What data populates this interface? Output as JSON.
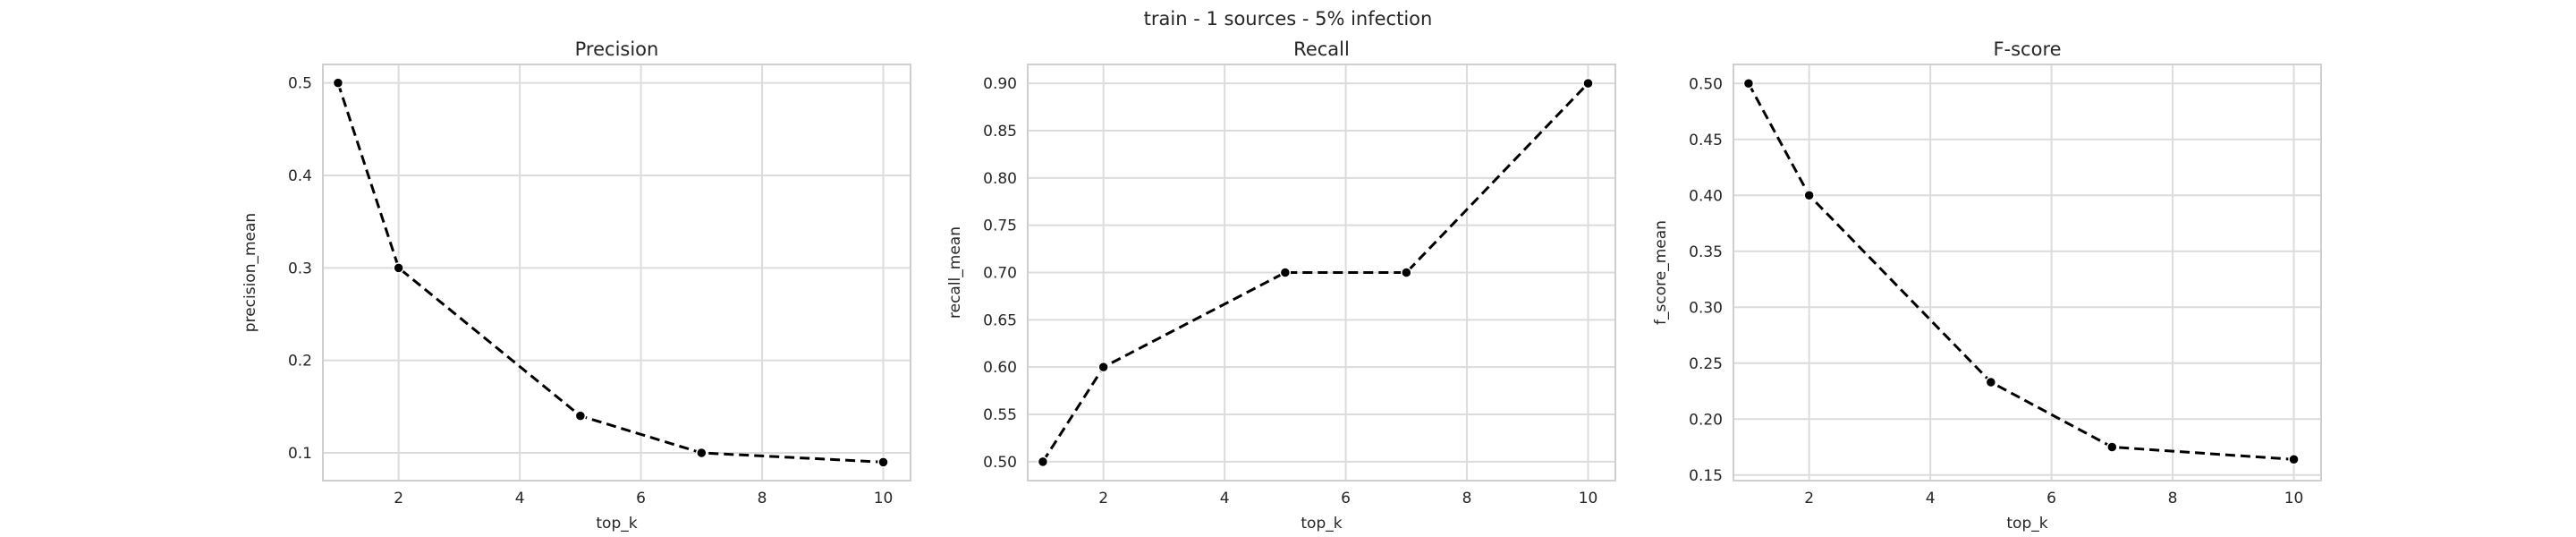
{
  "suptitle": "train - 1 sources - 5% infection",
  "colors": {
    "line": "#000000",
    "grid": "#dcdcdc",
    "frame": "#cfcfcf",
    "text": "#262626",
    "background": "#ffffff"
  },
  "chart_data": [
    {
      "type": "line",
      "title": "Precision",
      "xlabel": "top_k",
      "ylabel": "precision_mean",
      "x": [
        1,
        2,
        5,
        7,
        10
      ],
      "y": [
        0.5,
        0.3,
        0.14,
        0.1,
        0.09
      ],
      "xlim": [
        0.75,
        10.45
      ],
      "ylim": [
        0.07,
        0.52
      ],
      "xticks": [
        2,
        4,
        6,
        8,
        10
      ],
      "xtick_labels": [
        "2",
        "4",
        "6",
        "8",
        "10"
      ],
      "yticks": [
        0.1,
        0.2,
        0.3,
        0.4,
        0.5
      ],
      "ytick_labels": [
        "0.1",
        "0.2",
        "0.3",
        "0.4",
        "0.5"
      ],
      "grid": true,
      "line_style": "dashed",
      "marker": "circle"
    },
    {
      "type": "line",
      "title": "Recall",
      "xlabel": "top_k",
      "ylabel": "recall_mean",
      "x": [
        1,
        2,
        5,
        7,
        10
      ],
      "y": [
        0.5,
        0.6,
        0.7,
        0.7,
        0.9
      ],
      "xlim": [
        0.75,
        10.45
      ],
      "ylim": [
        0.48,
        0.92
      ],
      "xticks": [
        2,
        4,
        6,
        8,
        10
      ],
      "xtick_labels": [
        "2",
        "4",
        "6",
        "8",
        "10"
      ],
      "yticks": [
        0.5,
        0.55,
        0.6,
        0.65,
        0.7,
        0.75,
        0.8,
        0.85,
        0.9
      ],
      "ytick_labels": [
        "0.50",
        "0.55",
        "0.60",
        "0.65",
        "0.70",
        "0.75",
        "0.80",
        "0.85",
        "0.90"
      ],
      "grid": true,
      "line_style": "dashed",
      "marker": "circle"
    },
    {
      "type": "line",
      "title": "F-score",
      "xlabel": "top_k",
      "ylabel": "f_score_mean",
      "x": [
        1,
        2,
        5,
        7,
        10
      ],
      "y": [
        0.5,
        0.4,
        0.233,
        0.175,
        0.164
      ],
      "xlim": [
        0.75,
        10.45
      ],
      "ylim": [
        0.145,
        0.517
      ],
      "xticks": [
        2,
        4,
        6,
        8,
        10
      ],
      "xtick_labels": [
        "2",
        "4",
        "6",
        "8",
        "10"
      ],
      "yticks": [
        0.15,
        0.2,
        0.25,
        0.3,
        0.35,
        0.4,
        0.45,
        0.5
      ],
      "ytick_labels": [
        "0.15",
        "0.20",
        "0.25",
        "0.30",
        "0.35",
        "0.40",
        "0.45",
        "0.50"
      ],
      "grid": true,
      "line_style": "dashed",
      "marker": "circle"
    }
  ]
}
